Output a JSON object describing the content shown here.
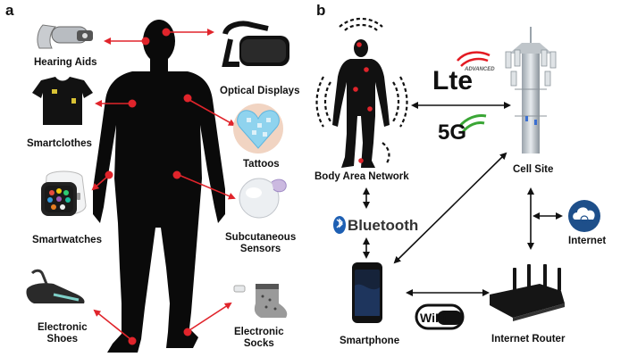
{
  "panels": {
    "a": "a",
    "b": "b"
  },
  "panel_a": {
    "left_labels": [
      "Hearing Aids",
      "Smartclothes",
      "Smartwatches",
      "Electronic\nShoes"
    ],
    "right_labels": [
      "Optical Displays",
      "Tattoos",
      "Subcutaneous\nSensors",
      "Electronic\nSocks"
    ]
  },
  "panel_b": {
    "nodes": {
      "body_area_network": "Body Area Network",
      "cell_site": "Cell Site",
      "internet": "Internet",
      "smartphone": "Smartphone",
      "internet_router": "Internet Router"
    },
    "logos": {
      "lte": "Lte",
      "lte_sub": "ADVANCED",
      "fiveg": "5G",
      "bluetooth": "Bluetooth",
      "wifi": "WiFi"
    }
  },
  "colors": {
    "arrow_red": "#e0242b",
    "silhouette": "#0a0a0a",
    "lte_red": "#e31b23",
    "fiveg_green": "#3aa635",
    "bluetooth_blue": "#1d5fb3",
    "internet_blue": "#1e4f8a"
  }
}
